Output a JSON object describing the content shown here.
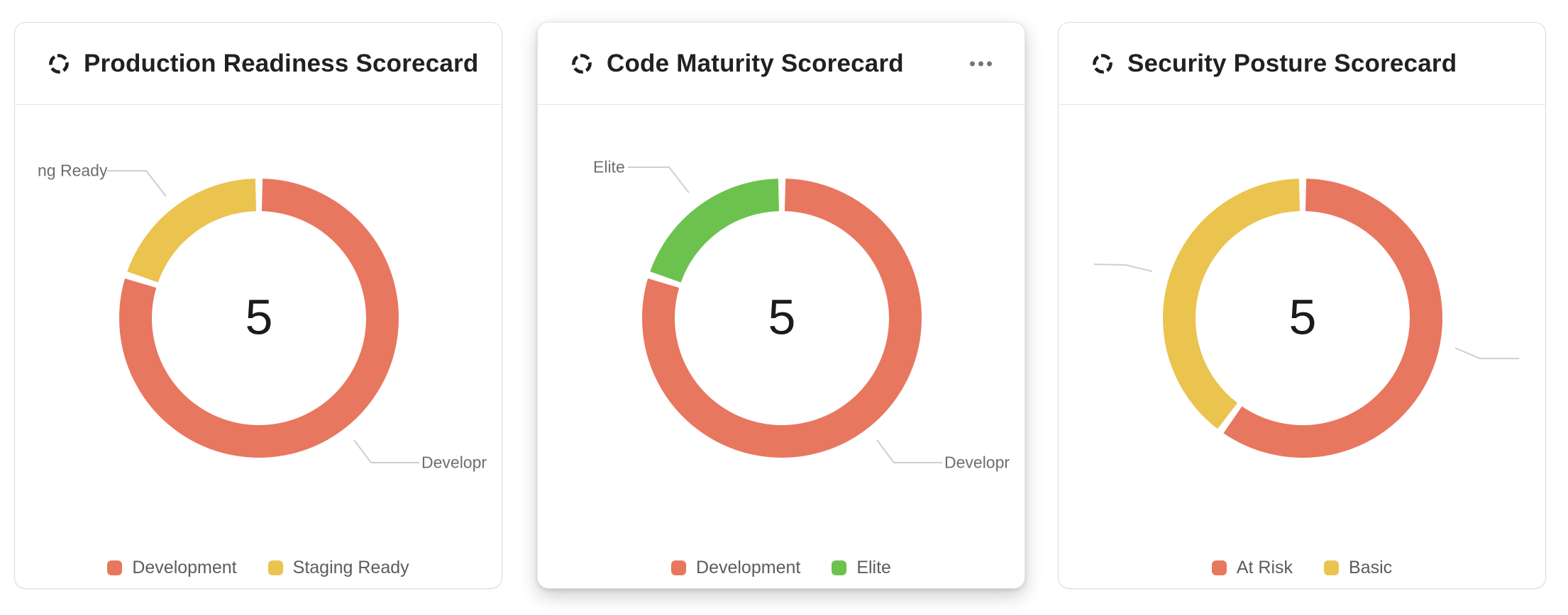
{
  "colors": {
    "development_red": "#E8775F",
    "staging_yellow": "#EBC34F",
    "elite_green": "#6CC24E",
    "at_risk_red": "#E8775F",
    "basic_yellow": "#EBC34F",
    "title_text": "#202124",
    "legend_text": "#5c5c5c",
    "callout_text": "#6e6e6e",
    "center_value_text": "#1b1b1b",
    "leader_line": "#cfcfcf",
    "card_border": "#dadce0"
  },
  "cards": [
    {
      "title": "Production Readiness Scorecard",
      "center_value": "5",
      "callouts": [
        {
          "text": "ng Ready"
        },
        {
          "text": "Developr"
        }
      ]
    },
    {
      "title": "Code Maturity Scorecard",
      "center_value": "5",
      "menu_icon": "more-options-dots",
      "callouts": [
        {
          "text": "Elite"
        },
        {
          "text": "Developr"
        }
      ]
    },
    {
      "title": "Security Posture Scorecard",
      "center_value": "5",
      "callouts": []
    }
  ],
  "chart_data": [
    {
      "type": "pie",
      "variant": "donut",
      "title": "Production Readiness Scorecard",
      "center_label": "5",
      "total": 5,
      "legend_position": "bottom",
      "slices": [
        {
          "label": "Development",
          "value": 4,
          "color": "#E8775F"
        },
        {
          "label": "Staging Ready",
          "value": 1,
          "color": "#EBC34F"
        }
      ]
    },
    {
      "type": "pie",
      "variant": "donut",
      "title": "Code Maturity Scorecard",
      "center_label": "5",
      "total": 5,
      "legend_position": "bottom",
      "slices": [
        {
          "label": "Development",
          "value": 4,
          "color": "#E8775F"
        },
        {
          "label": "Elite",
          "value": 1,
          "color": "#6CC24E"
        }
      ]
    },
    {
      "type": "pie",
      "variant": "donut",
      "title": "Security Posture Scorecard",
      "center_label": "5",
      "total": 5,
      "legend_position": "bottom",
      "slices": [
        {
          "label": "At Risk",
          "value": 3,
          "color": "#E8775F"
        },
        {
          "label": "Basic",
          "value": 2,
          "color": "#EBC34F"
        }
      ]
    }
  ]
}
